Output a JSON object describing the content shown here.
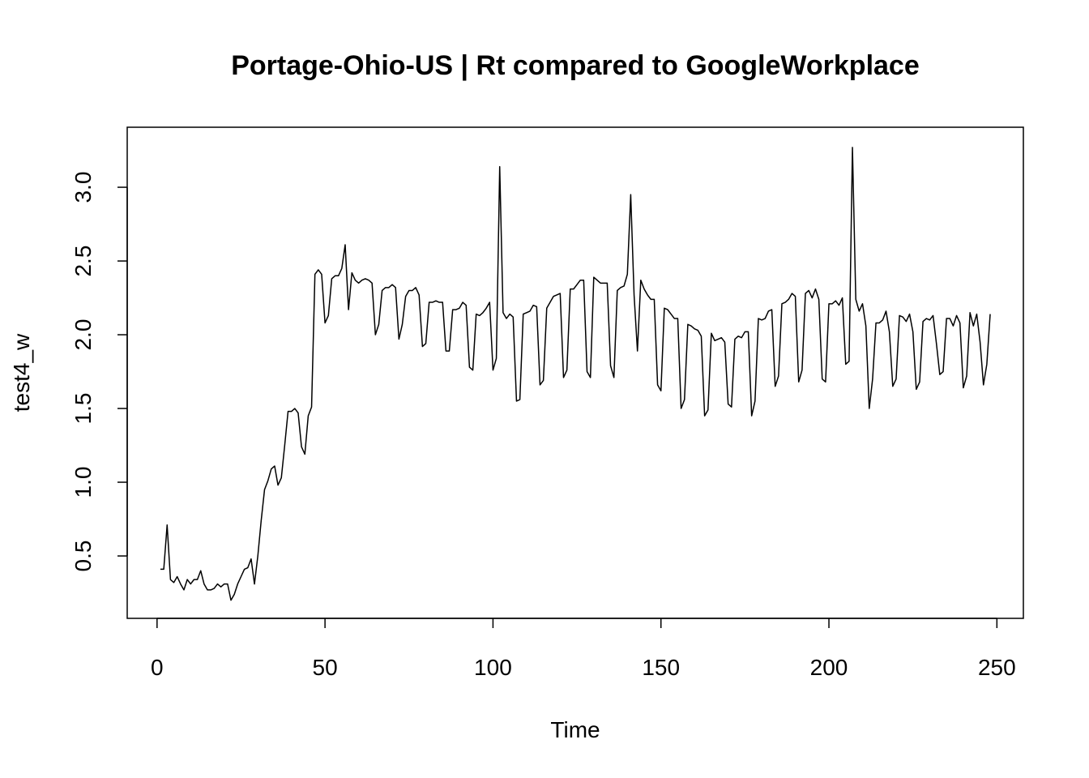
{
  "chart_data": {
    "type": "line",
    "title": "Portage-Ohio-US | Rt compared to GoogleWorkplace",
    "x_label": "Time",
    "y_label": "test4_w",
    "x": [
      1,
      2,
      3,
      4,
      5,
      6,
      7,
      8,
      9,
      10,
      11,
      12,
      13,
      14,
      15,
      16,
      17,
      18,
      19,
      20,
      21,
      22,
      23,
      24,
      25,
      26,
      27,
      28,
      29,
      30,
      31,
      32,
      33,
      34,
      35,
      36,
      37,
      38,
      39,
      40,
      41,
      42,
      43,
      44,
      45,
      46,
      47,
      48,
      49,
      50,
      51,
      52,
      53,
      54,
      55,
      56,
      57,
      58,
      59,
      60,
      61,
      62,
      63,
      64,
      65,
      66,
      67,
      68,
      69,
      70,
      71,
      72,
      73,
      74,
      75,
      76,
      77,
      78,
      79,
      80,
      81,
      82,
      83,
      84,
      85,
      86,
      87,
      88,
      89,
      90,
      91,
      92,
      93,
      94,
      95,
      96,
      97,
      98,
      99,
      100,
      101,
      102,
      103,
      104,
      105,
      106,
      107,
      108,
      109,
      110,
      111,
      112,
      113,
      114,
      115,
      116,
      117,
      118,
      119,
      120,
      121,
      122,
      123,
      124,
      125,
      126,
      127,
      128,
      129,
      130,
      131,
      132,
      133,
      134,
      135,
      136,
      137,
      138,
      139,
      140,
      141,
      142,
      143,
      144,
      145,
      146,
      147,
      148,
      149,
      150,
      151,
      152,
      153,
      154,
      155,
      156,
      157,
      158,
      159,
      160,
      161,
      162,
      163,
      164,
      165,
      166,
      167,
      168,
      169,
      170,
      171,
      172,
      173,
      174,
      175,
      176,
      177,
      178,
      179,
      180,
      181,
      182,
      183,
      184,
      185,
      186,
      187,
      188,
      189,
      190,
      191,
      192,
      193,
      194,
      195,
      196,
      197,
      198,
      199,
      200,
      201,
      202,
      203,
      204,
      205,
      206,
      207,
      208,
      209,
      210,
      211,
      212,
      213,
      214,
      215,
      216,
      217,
      218,
      219,
      220,
      221,
      222,
      223,
      224,
      225,
      226,
      227,
      228,
      229,
      230,
      231,
      232,
      233,
      234,
      235,
      236,
      237,
      238,
      239,
      240,
      241,
      242,
      243,
      244,
      245,
      246,
      247,
      248
    ],
    "series": [
      {
        "color": "#000000",
        "values": [
          0.41,
          0.41,
          0.71,
          0.34,
          0.32,
          0.36,
          0.31,
          0.27,
          0.34,
          0.31,
          0.34,
          0.34,
          0.4,
          0.31,
          0.27,
          0.27,
          0.28,
          0.31,
          0.29,
          0.31,
          0.31,
          0.2,
          0.24,
          0.31,
          0.36,
          0.41,
          0.42,
          0.48,
          0.31,
          0.5,
          0.74,
          0.95,
          1.01,
          1.09,
          1.11,
          0.98,
          1.03,
          1.25,
          1.48,
          1.48,
          1.5,
          1.47,
          1.24,
          1.19,
          1.45,
          1.51,
          2.41,
          2.44,
          2.41,
          2.08,
          2.13,
          2.38,
          2.4,
          2.4,
          2.45,
          2.61,
          2.17,
          2.42,
          2.37,
          2.35,
          2.37,
          2.38,
          2.37,
          2.35,
          2.0,
          2.07,
          2.3,
          2.32,
          2.32,
          2.34,
          2.32,
          1.97,
          2.07,
          2.26,
          2.3,
          2.3,
          2.32,
          2.27,
          1.92,
          1.94,
          2.22,
          2.22,
          2.23,
          2.22,
          2.22,
          1.89,
          1.89,
          2.17,
          2.17,
          2.18,
          2.22,
          2.2,
          1.78,
          1.76,
          2.14,
          2.13,
          2.15,
          2.18,
          2.22,
          1.76,
          1.84,
          3.14,
          2.15,
          2.11,
          2.14,
          2.12,
          1.55,
          1.56,
          2.14,
          2.15,
          2.16,
          2.2,
          2.19,
          1.66,
          1.69,
          2.18,
          2.22,
          2.26,
          2.27,
          2.28,
          1.71,
          1.76,
          2.31,
          2.31,
          2.34,
          2.37,
          2.37,
          1.75,
          1.71,
          2.39,
          2.37,
          2.35,
          2.35,
          2.35,
          1.79,
          1.71,
          2.3,
          2.32,
          2.33,
          2.41,
          2.95,
          2.27,
          1.89,
          2.37,
          2.31,
          2.27,
          2.24,
          2.24,
          1.66,
          1.62,
          2.18,
          2.17,
          2.14,
          2.11,
          2.11,
          1.5,
          1.56,
          2.07,
          2.06,
          2.04,
          2.03,
          1.99,
          1.45,
          1.49,
          2.01,
          1.96,
          1.97,
          1.98,
          1.95,
          1.53,
          1.51,
          1.97,
          1.99,
          1.98,
          2.02,
          2.02,
          1.45,
          1.55,
          2.11,
          2.1,
          2.11,
          2.16,
          2.17,
          1.65,
          1.72,
          2.21,
          2.22,
          2.24,
          2.28,
          2.26,
          1.68,
          1.76,
          2.28,
          2.3,
          2.25,
          2.31,
          2.24,
          1.7,
          1.68,
          2.21,
          2.21,
          2.23,
          2.2,
          2.25,
          1.8,
          1.82,
          3.27,
          2.24,
          2.16,
          2.21,
          2.06,
          1.5,
          1.7,
          2.08,
          2.08,
          2.1,
          2.16,
          2.02,
          1.65,
          1.7,
          2.13,
          2.12,
          2.09,
          2.14,
          2.02,
          1.63,
          1.68,
          2.09,
          2.11,
          2.1,
          2.13,
          1.94,
          1.73,
          1.75,
          2.11,
          2.11,
          2.06,
          2.13,
          2.08,
          1.64,
          1.72,
          2.15,
          2.06,
          2.14,
          1.95,
          1.66,
          1.8,
          2.14
        ]
      }
    ],
    "xlim": [
      -8.88,
      257.88
    ],
    "ylim": [
      0.077,
      3.407
    ],
    "xticks": [
      0,
      50,
      100,
      150,
      200,
      250
    ],
    "yticks": [
      0.5,
      {
        "value": 1,
        "label": "1.0"
      },
      1.5,
      {
        "value": 2,
        "label": "2.0"
      },
      2.5,
      {
        "value": 3,
        "label": "3.0"
      }
    ]
  }
}
